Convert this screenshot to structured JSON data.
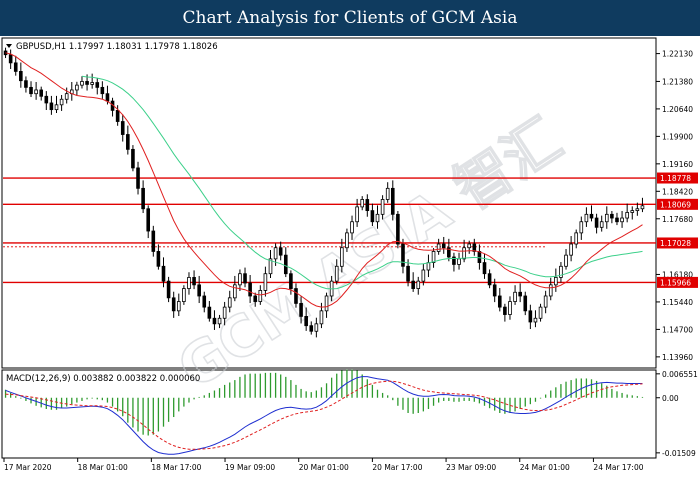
{
  "banner": {
    "title": "Chart Analysis for Clients of GCM Asia"
  },
  "watermark": {
    "text": "GCM ASIA 智汇",
    "color": "#c8ccd0"
  },
  "colors": {
    "background": "#ffffff",
    "banner": "#0f3b5f",
    "bull": "#1a7a1a",
    "bear": "#1a7a1a",
    "ma_fast": "#e02020",
    "ma_slow": "#3cd08a",
    "level_line": "#e00000",
    "level_label_bg": "#e00000",
    "level_label_text": "#ffffff",
    "macd_line": "#1f2fd0",
    "macd_signal": "#e02020",
    "macd_hist": "#2e9a2e"
  },
  "chart_data": [
    {
      "type": "candlestick",
      "header": "GBPUSD,H1  1.17997 1.18031 1.17978 1.18026",
      "ylim": [
        1.1366,
        1.2255
      ],
      "y_ticks": [
        "1.22130",
        "1.21380",
        "1.20640",
        "1.19900",
        "1.19160",
        "1.18420",
        "1.17680",
        "1.16180",
        "1.15440",
        "1.14700",
        "1.13960"
      ],
      "x_labels": [
        "17 Mar 2020",
        "18 Mar 01:00",
        "18 Mar 17:00",
        "19 Mar 09:00",
        "20 Mar 01:00",
        "20 Mar 17:00",
        "23 Mar 09:00",
        "24 Mar 01:00",
        "24 Mar 17:00"
      ],
      "levels": [
        {
          "value": 1.18778,
          "label": "1.18778"
        },
        {
          "value": 1.18069,
          "label": "1.18069"
        },
        {
          "value": 1.17028,
          "label": "1.17028"
        },
        {
          "value": 1.15966,
          "label": "1.15966"
        }
      ],
      "anchor_price": {
        "value": 1.16925
      },
      "close_series": [
        1.221,
        1.2188,
        1.2165,
        1.214,
        1.2122,
        1.2105,
        1.2115,
        1.2098,
        1.208,
        1.2062,
        1.2075,
        1.209,
        1.2105,
        1.2115,
        1.2128,
        1.2138,
        1.213,
        1.2135,
        1.2122,
        1.2105,
        1.2085,
        1.206,
        1.203,
        1.1995,
        1.1955,
        1.1905,
        1.185,
        1.1795,
        1.1735,
        1.168,
        1.164,
        1.16,
        1.1555,
        1.152,
        1.1545,
        1.158,
        1.161,
        1.159,
        1.156,
        1.153,
        1.15,
        1.1485,
        1.15,
        1.153,
        1.1555,
        1.159,
        1.162,
        1.1595,
        1.156,
        1.1545,
        1.1575,
        1.162,
        1.166,
        1.169,
        1.167,
        1.162,
        1.158,
        1.154,
        1.1505,
        1.148,
        1.1465,
        1.1485,
        1.152,
        1.156,
        1.16,
        1.164,
        1.169,
        1.173,
        1.176,
        1.18,
        1.182,
        1.179,
        1.176,
        1.178,
        1.182,
        1.185,
        1.178,
        1.17,
        1.164,
        1.16,
        1.158,
        1.16,
        1.163,
        1.165,
        1.168,
        1.17,
        1.169,
        1.1665,
        1.1645,
        1.166,
        1.169,
        1.17,
        1.168,
        1.165,
        1.162,
        1.159,
        1.156,
        1.153,
        1.151,
        1.1545,
        1.157,
        1.156,
        1.152,
        1.149,
        1.15,
        1.153,
        1.156,
        1.159,
        1.161,
        1.164,
        1.167,
        1.17,
        1.173,
        1.176,
        1.178,
        1.177,
        1.1745,
        1.176,
        1.178,
        1.177,
        1.176,
        1.177,
        1.1785,
        1.179,
        1.1795,
        1.1803
      ],
      "ma_fast": [
        1.2215,
        1.2212,
        1.2205,
        1.2195,
        1.2185,
        1.2175,
        1.2168,
        1.216,
        1.215,
        1.214,
        1.213,
        1.212,
        1.2112,
        1.2105,
        1.21,
        1.2098,
        1.2096,
        1.2095,
        1.2093,
        1.209,
        1.2084,
        1.2075,
        1.2063,
        1.2048,
        1.203,
        1.2008,
        1.1983,
        1.1955,
        1.1925,
        1.1893,
        1.186,
        1.1827,
        1.1795,
        1.1763,
        1.1737,
        1.1714,
        1.1695,
        1.1678,
        1.1662,
        1.1647,
        1.1632,
        1.1617,
        1.1604,
        1.1594,
        1.1586,
        1.1582,
        1.158,
        1.1577,
        1.1571,
        1.1565,
        1.1563,
        1.1565,
        1.157,
        1.1577,
        1.1581,
        1.158,
        1.1576,
        1.1569,
        1.156,
        1.155,
        1.154,
        1.1533,
        1.153,
        1.1531,
        1.1537,
        1.1546,
        1.156,
        1.1576,
        1.1594,
        1.1614,
        1.1634,
        1.1649,
        1.166,
        1.1671,
        1.1684,
        1.1698,
        1.1706,
        1.1707,
        1.1703,
        1.1697,
        1.169,
        1.1686,
        1.1684,
        1.1683,
        1.1684,
        1.1686,
        1.1687,
        1.1686,
        1.1683,
        1.1681,
        1.1681,
        1.1682,
        1.1682,
        1.1679,
        1.1674,
        1.1667,
        1.1657,
        1.1646,
        1.1634,
        1.1626,
        1.162,
        1.1614,
        1.1606,
        1.1597,
        1.159,
        1.1585,
        1.1582,
        1.1582,
        1.1584,
        1.1589,
        1.1597,
        1.1608,
        1.1621,
        1.1636,
        1.1652,
        1.1665,
        1.1675,
        1.1686,
        1.1697,
        1.1706,
        1.1713,
        1.172,
        1.1728,
        1.1736,
        1.1743,
        1.1752
      ],
      "ma_slow": [
        null,
        null,
        null,
        null,
        null,
        null,
        null,
        null,
        null,
        null,
        null,
        null,
        null,
        null,
        null,
        1.2152,
        1.215,
        1.2149,
        1.2147,
        1.2144,
        1.214,
        1.2134,
        1.2126,
        1.2117,
        1.2106,
        1.2093,
        1.2078,
        1.2062,
        1.2044,
        1.2025,
        1.2005,
        1.1985,
        1.1964,
        1.1943,
        1.1924,
        1.1906,
        1.1888,
        1.1869,
        1.185,
        1.183,
        1.181,
        1.179,
        1.1772,
        1.1755,
        1.174,
        1.1727,
        1.1715,
        1.1703,
        1.169,
        1.1678,
        1.1668,
        1.166,
        1.1655,
        1.1651,
        1.1647,
        1.1641,
        1.1635,
        1.1627,
        1.1618,
        1.1608,
        1.1598,
        1.159,
        1.1584,
        1.158,
        1.1579,
        1.158,
        1.1584,
        1.159,
        1.1597,
        1.1606,
        1.1615,
        1.1622,
        1.1627,
        1.1633,
        1.164,
        1.1648,
        1.1652,
        1.1652,
        1.1651,
        1.1649,
        1.1647,
        1.1646,
        1.1647,
        1.1649,
        1.1652,
        1.1656,
        1.1659,
        1.1661,
        1.1661,
        1.1661,
        1.1662,
        1.1663,
        1.1664,
        1.1663,
        1.1661,
        1.1658,
        1.1654,
        1.1649,
        1.1643,
        1.1639,
        1.1636,
        1.1632,
        1.1627,
        1.1621,
        1.1617,
        1.1614,
        1.1612,
        1.1612,
        1.1613,
        1.1616,
        1.162,
        1.1625,
        1.1632,
        1.1639,
        1.1647,
        1.1653,
        1.1657,
        1.1661,
        1.1665,
        1.1668,
        1.167,
        1.1672,
        1.1674,
        1.1676,
        1.1678,
        1.168
      ]
    },
    {
      "type": "macd",
      "header": "MACD(12,26,9) 0.003882 0.003822 0.000060",
      "ylim": [
        -0.0165,
        0.0076
      ],
      "y_ticks": [
        "0.006551",
        "0.00",
        "-0.01509"
      ],
      "macd_line": [
        0.002,
        0.0015,
        0.001,
        0.0005,
        0.0,
        -0.0005,
        -0.001,
        -0.0015,
        -0.002,
        -0.0024,
        -0.0027,
        -0.0028,
        -0.0028,
        -0.0027,
        -0.0026,
        -0.0025,
        -0.0024,
        -0.0023,
        -0.0024,
        -0.0026,
        -0.003,
        -0.0038,
        -0.0048,
        -0.006,
        -0.0075,
        -0.009,
        -0.0105,
        -0.012,
        -0.0133,
        -0.0143,
        -0.015,
        -0.0153,
        -0.0155,
        -0.0155,
        -0.0153,
        -0.015,
        -0.0147,
        -0.0143,
        -0.014,
        -0.0137,
        -0.0133,
        -0.0128,
        -0.0122,
        -0.0115,
        -0.0108,
        -0.01,
        -0.009,
        -0.008,
        -0.0072,
        -0.0065,
        -0.0058,
        -0.005,
        -0.0042,
        -0.0035,
        -0.003,
        -0.0027,
        -0.0026,
        -0.0028,
        -0.003,
        -0.0031,
        -0.003,
        -0.0026,
        -0.0018,
        -0.0008,
        0.0005,
        0.0018,
        0.003,
        0.004,
        0.0048,
        0.0055,
        0.0058,
        0.0058,
        0.0055,
        0.0052,
        0.005,
        0.0048,
        0.0042,
        0.0033,
        0.0024,
        0.0016,
        0.001,
        0.0006,
        0.0004,
        0.0004,
        0.0006,
        0.0008,
        0.0009,
        0.0008,
        0.0006,
        0.0005,
        0.0005,
        0.0004,
        0.0002,
        -0.0002,
        -0.0008,
        -0.0015,
        -0.0022,
        -0.003,
        -0.0036,
        -0.004,
        -0.0042,
        -0.0043,
        -0.0043,
        -0.0042,
        -0.004,
        -0.0036,
        -0.003,
        -0.0023,
        -0.0015,
        -0.0007,
        0.0002,
        0.001,
        0.0018,
        0.0025,
        0.0031,
        0.0036,
        0.0039,
        0.0041,
        0.0042,
        0.0041,
        0.004,
        0.004,
        0.0039,
        0.0039,
        0.0039,
        0.0039
      ],
      "signal_line": [
        0.001,
        0.0009,
        0.0008,
        0.0006,
        0.0004,
        0.0002,
        0.0,
        -0.0003,
        -0.0006,
        -0.0009,
        -0.0012,
        -0.0015,
        -0.0017,
        -0.0019,
        -0.002,
        -0.0021,
        -0.0022,
        -0.0022,
        -0.0022,
        -0.0023,
        -0.0024,
        -0.0027,
        -0.0031,
        -0.0037,
        -0.0044,
        -0.0053,
        -0.0063,
        -0.0074,
        -0.0086,
        -0.0097,
        -0.0108,
        -0.0117,
        -0.0125,
        -0.0131,
        -0.0136,
        -0.0139,
        -0.0141,
        -0.0141,
        -0.0141,
        -0.014,
        -0.0139,
        -0.0137,
        -0.0134,
        -0.0131,
        -0.0127,
        -0.0122,
        -0.0116,
        -0.0109,
        -0.0102,
        -0.0095,
        -0.0088,
        -0.0081,
        -0.0073,
        -0.0066,
        -0.0059,
        -0.0053,
        -0.0048,
        -0.0044,
        -0.0041,
        -0.0039,
        -0.0037,
        -0.0035,
        -0.0031,
        -0.0026,
        -0.002,
        -0.0012,
        -0.0004,
        0.0005,
        0.0013,
        0.0021,
        0.0029,
        0.0035,
        0.0039,
        0.0042,
        0.0044,
        0.0045,
        0.0045,
        0.0043,
        0.0039,
        0.0035,
        0.003,
        0.0025,
        0.0021,
        0.0018,
        0.0016,
        0.0014,
        0.0013,
        0.0012,
        0.0011,
        0.001,
        0.0009,
        0.0008,
        0.0007,
        0.0005,
        0.0002,
        -0.0002,
        -0.0006,
        -0.0011,
        -0.0016,
        -0.0021,
        -0.0025,
        -0.0029,
        -0.0032,
        -0.0034,
        -0.0035,
        -0.0035,
        -0.0034,
        -0.0032,
        -0.0028,
        -0.0024,
        -0.0018,
        -0.0012,
        -0.0006,
        0.0001,
        0.0007,
        0.0013,
        0.0018,
        0.0023,
        0.0027,
        0.003,
        0.0032,
        0.0034,
        0.0035,
        0.0036,
        0.0037,
        0.0038
      ]
    }
  ]
}
